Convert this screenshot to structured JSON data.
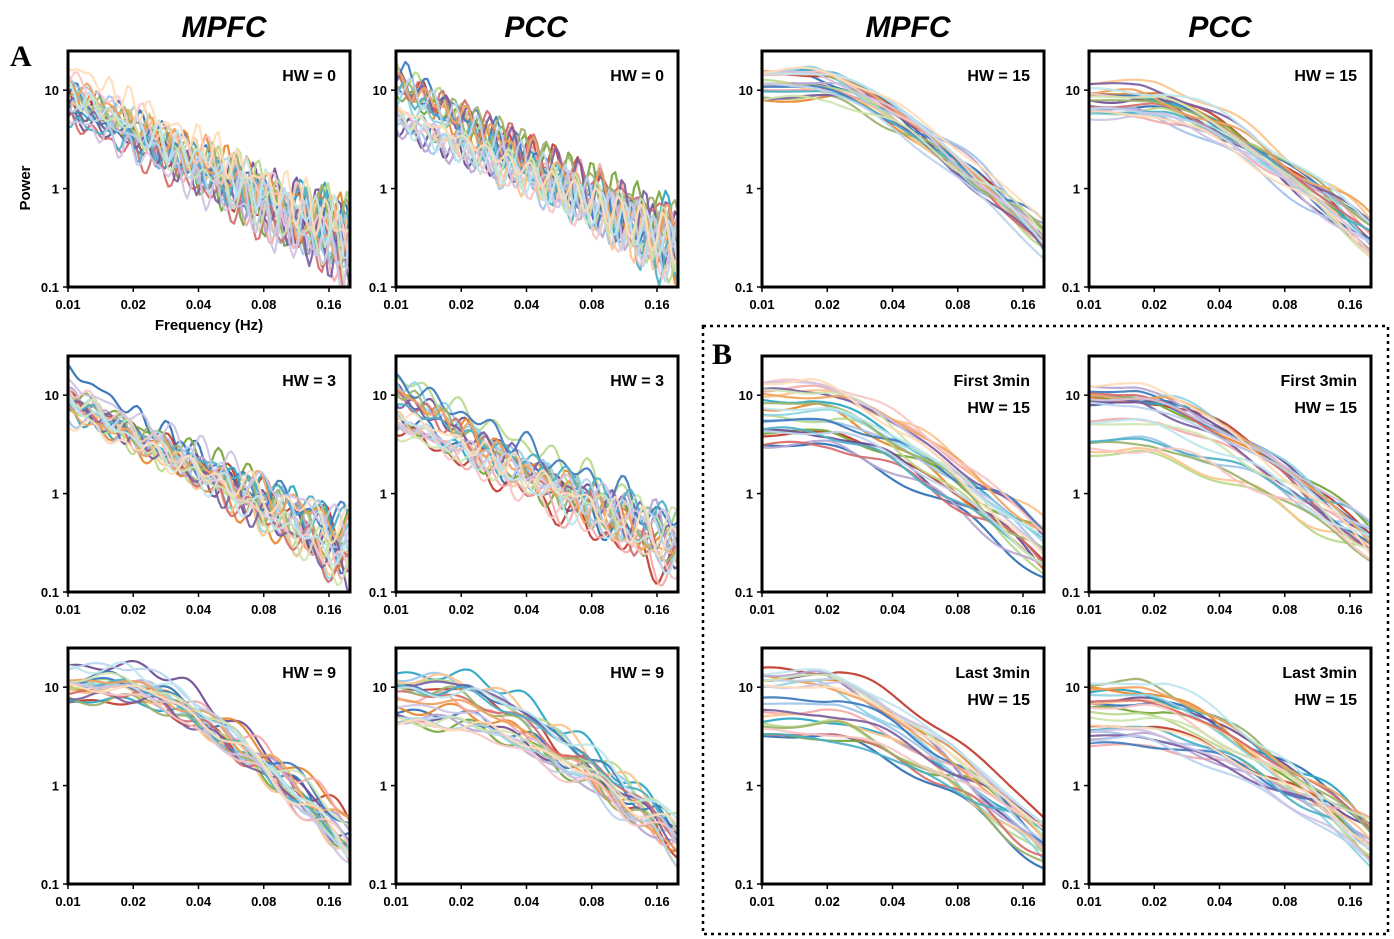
{
  "figure": {
    "column_titles": [
      "MPFC",
      "PCC",
      "MPFC",
      "PCC"
    ],
    "panel_letters": [
      "A",
      "B"
    ]
  },
  "colors": [
    "#2e6fb5",
    "#c0392b",
    "#76a637",
    "#6a4c93",
    "#2aa5c2",
    "#e8862a",
    "#9fc5ea",
    "#f4a9a8",
    "#b9d98a",
    "#b7a6d3",
    "#8fd5e3",
    "#fbc48d",
    "#3d7bbf",
    "#d46b6b",
    "#9cb36b",
    "#7b5ea3",
    "#4db0c7",
    "#f0a35e",
    "#bcd4ee",
    "#f8c6c5",
    "#cfe4b0",
    "#cfc3e4",
    "#bfe6ee",
    "#ffdcb8"
  ],
  "chart_data": [
    {
      "id": "mpfc-hw0",
      "type": "line",
      "region": "MPFC",
      "label_lines": [
        "HW = 0"
      ],
      "hw": 0,
      "xscale": "log",
      "yscale": "log",
      "xlim": [
        0.01,
        0.2
      ],
      "ylim": [
        0.1,
        25
      ],
      "xticks": [
        "0.01",
        "0.02",
        "0.04",
        "0.08",
        "0.16"
      ],
      "yticks": [
        "10",
        "1",
        "0.1"
      ],
      "ylabel": "Power",
      "xlabel": "Frequency (Hz)",
      "curve_level_range": [
        5,
        20
      ],
      "curve_end_range": [
        0.15,
        0.5
      ],
      "series_count": 24
    },
    {
      "id": "pcc-hw0",
      "type": "line",
      "region": "PCC",
      "label_lines": [
        "HW = 0"
      ],
      "hw": 0,
      "xscale": "log",
      "yscale": "log",
      "xlim": [
        0.01,
        0.2
      ],
      "ylim": [
        0.1,
        25
      ],
      "xticks": [
        "0.01",
        "0.02",
        "0.04",
        "0.08",
        "0.16"
      ],
      "yticks": [
        "10",
        "1",
        "0.1"
      ],
      "ylabel": "",
      "xlabel": "",
      "curve_level_range": [
        4,
        18
      ],
      "curve_end_range": [
        0.15,
        0.5
      ],
      "series_count": 24
    },
    {
      "id": "mpfc-hw15",
      "type": "line",
      "region": "MPFC",
      "label_lines": [
        "HW = 15"
      ],
      "hw": 15,
      "xscale": "log",
      "yscale": "log",
      "xlim": [
        0.01,
        0.2
      ],
      "ylim": [
        0.1,
        25
      ],
      "xticks": [
        "0.01",
        "0.02",
        "0.04",
        "0.08",
        "0.16"
      ],
      "yticks": [
        "10",
        "1",
        "0.1"
      ],
      "ylabel": "",
      "xlabel": "",
      "curve_level_range": [
        8,
        16
      ],
      "curve_end_range": [
        0.2,
        0.5
      ],
      "series_count": 24
    },
    {
      "id": "pcc-hw15",
      "type": "line",
      "region": "PCC",
      "label_lines": [
        "HW = 15"
      ],
      "hw": 15,
      "xscale": "log",
      "yscale": "log",
      "xlim": [
        0.01,
        0.2
      ],
      "ylim": [
        0.1,
        25
      ],
      "xticks": [
        "0.01",
        "0.02",
        "0.04",
        "0.08",
        "0.16"
      ],
      "yticks": [
        "10",
        "1",
        "0.1"
      ],
      "ylabel": "",
      "xlabel": "",
      "curve_level_range": [
        5,
        12
      ],
      "curve_end_range": [
        0.2,
        0.5
      ],
      "series_count": 24
    },
    {
      "id": "mpfc-hw3",
      "type": "line",
      "region": "MPFC",
      "label_lines": [
        "HW = 3"
      ],
      "hw": 3,
      "xscale": "log",
      "yscale": "log",
      "xlim": [
        0.01,
        0.2
      ],
      "ylim": [
        0.1,
        25
      ],
      "xticks": [
        "0.01",
        "0.02",
        "0.04",
        "0.08",
        "0.16"
      ],
      "yticks": [
        "10",
        "1",
        "0.1"
      ],
      "ylabel": "",
      "xlabel": "",
      "curve_level_range": [
        5,
        20
      ],
      "curve_end_range": [
        0.15,
        0.5
      ],
      "series_count": 24
    },
    {
      "id": "pcc-hw3",
      "type": "line",
      "region": "PCC",
      "label_lines": [
        "HW = 3"
      ],
      "hw": 3,
      "xscale": "log",
      "yscale": "log",
      "xlim": [
        0.01,
        0.2
      ],
      "ylim": [
        0.1,
        25
      ],
      "xticks": [
        "0.01",
        "0.02",
        "0.04",
        "0.08",
        "0.16"
      ],
      "yticks": [
        "10",
        "1",
        "0.1"
      ],
      "ylabel": "",
      "xlabel": "",
      "curve_level_range": [
        4,
        16
      ],
      "curve_end_range": [
        0.15,
        0.5
      ],
      "series_count": 24
    },
    {
      "id": "mpfc-first3-hw15",
      "type": "line",
      "region": "MPFC",
      "label_lines": [
        "First 3min",
        "HW = 15"
      ],
      "hw": 15,
      "xscale": "log",
      "yscale": "log",
      "xlim": [
        0.01,
        0.2
      ],
      "ylim": [
        0.1,
        25
      ],
      "xticks": [
        "0.01",
        "0.02",
        "0.04",
        "0.08",
        "0.16"
      ],
      "yticks": [
        "10",
        "1",
        "0.1"
      ],
      "ylabel": "",
      "xlabel": "",
      "curve_level_range": [
        3,
        15
      ],
      "curve_end_range": [
        0.15,
        0.5
      ],
      "series_count": 24
    },
    {
      "id": "pcc-first3-hw15",
      "type": "line",
      "region": "PCC",
      "label_lines": [
        "First 3min",
        "HW = 15"
      ],
      "hw": 15,
      "xscale": "log",
      "yscale": "log",
      "xlim": [
        0.01,
        0.2
      ],
      "ylim": [
        0.1,
        25
      ],
      "xticks": [
        "0.01",
        "0.02",
        "0.04",
        "0.08",
        "0.16"
      ],
      "yticks": [
        "10",
        "1",
        "0.1"
      ],
      "ylabel": "",
      "xlabel": "",
      "curve_level_range": [
        2.5,
        14
      ],
      "curve_end_range": [
        0.2,
        0.5
      ],
      "series_count": 24
    },
    {
      "id": "mpfc-hw9",
      "type": "line",
      "region": "MPFC",
      "label_lines": [
        "HW = 9"
      ],
      "hw": 9,
      "xscale": "log",
      "yscale": "log",
      "xlim": [
        0.01,
        0.2
      ],
      "ylim": [
        0.1,
        25
      ],
      "xticks": [
        "0.01",
        "0.02",
        "0.04",
        "0.08",
        "0.16"
      ],
      "yticks": [
        "10",
        "1",
        "0.1"
      ],
      "ylabel": "",
      "xlabel": "",
      "curve_level_range": [
        7,
        18
      ],
      "curve_end_range": [
        0.15,
        0.5
      ],
      "series_count": 24
    },
    {
      "id": "pcc-hw9",
      "type": "line",
      "region": "PCC",
      "label_lines": [
        "HW = 9"
      ],
      "hw": 9,
      "xscale": "log",
      "yscale": "log",
      "xlim": [
        0.01,
        0.2
      ],
      "ylim": [
        0.1,
        25
      ],
      "xticks": [
        "0.01",
        "0.02",
        "0.04",
        "0.08",
        "0.16"
      ],
      "yticks": [
        "10",
        "1",
        "0.1"
      ],
      "ylabel": "",
      "xlabel": "",
      "curve_level_range": [
        4,
        14
      ],
      "curve_end_range": [
        0.18,
        0.45
      ],
      "series_count": 24
    },
    {
      "id": "mpfc-last3-hw15",
      "type": "line",
      "region": "MPFC",
      "label_lines": [
        "Last 3min",
        "HW = 15"
      ],
      "hw": 15,
      "xscale": "log",
      "yscale": "log",
      "xlim": [
        0.01,
        0.2
      ],
      "ylim": [
        0.1,
        25
      ],
      "xticks": [
        "0.01",
        "0.02",
        "0.04",
        "0.08",
        "0.16"
      ],
      "yticks": [
        "10",
        "1",
        "0.1"
      ],
      "ylabel": "",
      "xlabel": "",
      "curve_level_range": [
        3,
        15
      ],
      "curve_end_range": [
        0.15,
        0.5
      ],
      "series_count": 24
    },
    {
      "id": "pcc-last3-hw15",
      "type": "line",
      "region": "PCC",
      "label_lines": [
        "Last 3min",
        "HW = 15"
      ],
      "hw": 15,
      "xscale": "log",
      "yscale": "log",
      "xlim": [
        0.01,
        0.2
      ],
      "ylim": [
        0.1,
        25
      ],
      "xticks": [
        "0.01",
        "0.02",
        "0.04",
        "0.08",
        "0.16"
      ],
      "yticks": [
        "10",
        "1",
        "0.1"
      ],
      "ylabel": "",
      "xlabel": "",
      "curve_level_range": [
        2.5,
        12
      ],
      "curve_end_range": [
        0.15,
        0.45
      ],
      "series_count": 24
    }
  ]
}
